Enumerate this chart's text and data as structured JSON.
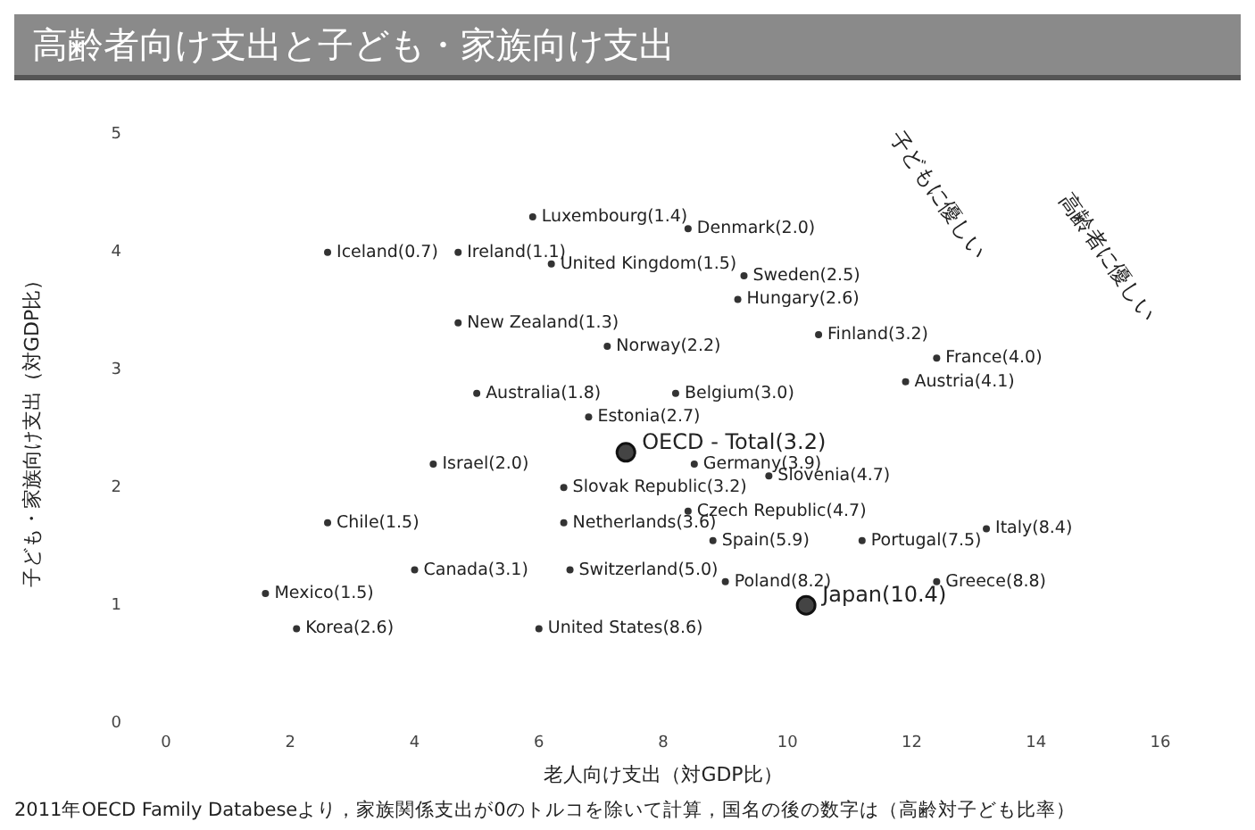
{
  "chart_data": {
    "type": "scatter",
    "title": "高齢者向け支出と子ども・家族向け支出",
    "xlabel": "老人向け支出（対GDP比）",
    "ylabel": "子ども・家族向け支出（対GDP比）",
    "marker": "circle",
    "xlim": [
      0,
      16
    ],
    "xticks": [
      0,
      2,
      4,
      6,
      8,
      10,
      12,
      14,
      16
    ],
    "ylim": [
      0,
      5
    ],
    "yticks": [
      0,
      1,
      2,
      3,
      4,
      5
    ],
    "series": [
      {
        "color": "#333333",
        "x": [
          5.9,
          8.4,
          2.6,
          4.7,
          6.2,
          9.3,
          9.2,
          4.7,
          7.1,
          10.5,
          12.4,
          11.9,
          5.0,
          8.2,
          6.8,
          4.3,
          8.5,
          6.4,
          9.7,
          2.6,
          6.4,
          8.4,
          8.8,
          11.2,
          13.2,
          4.0,
          6.5,
          12.4,
          9.0,
          1.6,
          2.1,
          6.0
        ],
        "values": [
          4.3,
          4.2,
          4.0,
          4.0,
          3.9,
          3.8,
          3.6,
          3.4,
          3.2,
          3.3,
          3.1,
          2.9,
          2.8,
          2.8,
          2.6,
          2.2,
          2.2,
          2.0,
          2.1,
          1.7,
          1.7,
          1.8,
          1.55,
          1.55,
          1.65,
          1.3,
          1.3,
          1.2,
          1.2,
          1.1,
          0.8,
          0.8
        ]
      },
      {
        "color": "#444444",
        "x": [
          7.4,
          10.3
        ],
        "values": [
          2.3,
          1.0
        ]
      }
    ],
    "annotations": [
      {
        "text": "Luxembourg(1.4)",
        "x": 5.9,
        "y": 4.3
      },
      {
        "text": "Denmark(2.0)",
        "x": 8.4,
        "y": 4.2
      },
      {
        "text": "Iceland(0.7)",
        "x": 2.6,
        "y": 4.0
      },
      {
        "text": "Ireland(1.1)",
        "x": 4.7,
        "y": 4.0
      },
      {
        "text": "United Kingdom(1.5)",
        "x": 6.2,
        "y": 3.9
      },
      {
        "text": "Sweden(2.5)",
        "x": 9.3,
        "y": 3.8
      },
      {
        "text": "Hungary(2.6)",
        "x": 9.2,
        "y": 3.6
      },
      {
        "text": "New Zealand(1.3)",
        "x": 4.7,
        "y": 3.4
      },
      {
        "text": "Norway(2.2)",
        "x": 7.1,
        "y": 3.2
      },
      {
        "text": "Finland(3.2)",
        "x": 10.5,
        "y": 3.3
      },
      {
        "text": "France(4.0)",
        "x": 12.4,
        "y": 3.1
      },
      {
        "text": "Austria(4.1)",
        "x": 11.9,
        "y": 2.9
      },
      {
        "text": "Australia(1.8)",
        "x": 5.0,
        "y": 2.8
      },
      {
        "text": "Belgium(3.0)",
        "x": 8.2,
        "y": 2.8
      },
      {
        "text": "Estonia(2.7)",
        "x": 6.8,
        "y": 2.6
      },
      {
        "text": "OECD - Total(3.2)",
        "x": 7.4,
        "y": 2.3
      },
      {
        "text": "Israel(2.0)",
        "x": 4.3,
        "y": 2.2
      },
      {
        "text": "Germany(3.9)",
        "x": 8.5,
        "y": 2.2
      },
      {
        "text": "Slovak Republic(3.2)",
        "x": 6.4,
        "y": 2.0
      },
      {
        "text": "Slovenia(4.7)",
        "x": 9.7,
        "y": 2.1
      },
      {
        "text": "Chile(1.5)",
        "x": 2.6,
        "y": 1.7
      },
      {
        "text": "Netherlands(3.6)",
        "x": 6.4,
        "y": 1.7
      },
      {
        "text": "Czech Republic(4.7)",
        "x": 8.4,
        "y": 1.8
      },
      {
        "text": "Spain(5.9)",
        "x": 8.8,
        "y": 1.55
      },
      {
        "text": "Portugal(7.5)",
        "x": 11.2,
        "y": 1.55
      },
      {
        "text": "Italy(8.4)",
        "x": 13.2,
        "y": 1.65
      },
      {
        "text": "Canada(3.1)",
        "x": 4.0,
        "y": 1.3
      },
      {
        "text": "Switzerland(5.0)",
        "x": 6.5,
        "y": 1.3
      },
      {
        "text": "Greece(8.8)",
        "x": 12.4,
        "y": 1.2
      },
      {
        "text": "Poland(8.2)",
        "x": 9.0,
        "y": 1.2
      },
      {
        "text": "Japan(10.4)",
        "x": 10.3,
        "y": 1.0
      },
      {
        "text": "Mexico(1.5)",
        "x": 1.6,
        "y": 1.1
      },
      {
        "text": "Korea(2.6)",
        "x": 2.1,
        "y": 0.8
      },
      {
        "text": "United States(8.6)",
        "x": 6.0,
        "y": 0.8
      },
      "子どもに優しい",
      "高齢者に優しい",
      "2011年OECD Family Databeseより，家族関係支出が0のトルコを除いて計算，国名の後の数字は（高齢対子ども比率）"
    ]
  }
}
